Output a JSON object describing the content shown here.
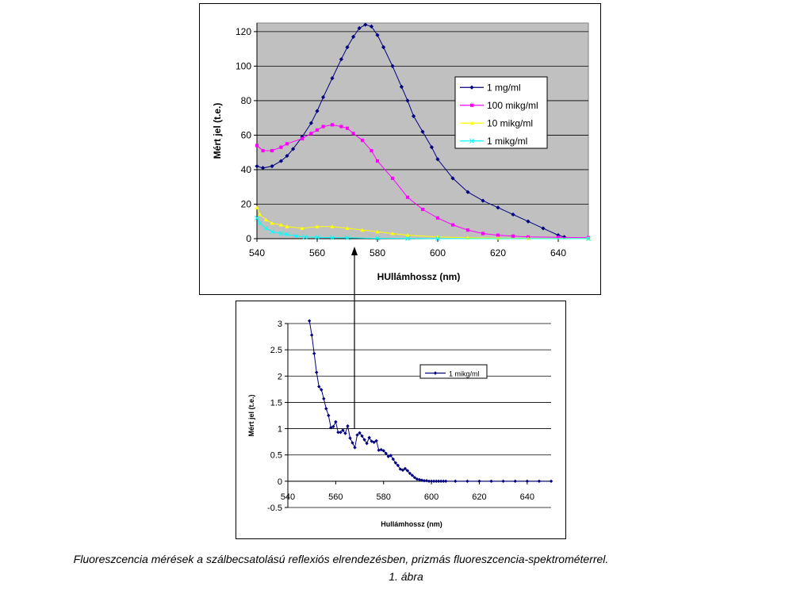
{
  "chart_data": [
    {
      "type": "line",
      "title": "",
      "xlabel": "HUllámhossz (nm)",
      "ylabel": "Mért jel (t.e.)",
      "xlim": [
        540,
        650
      ],
      "ylim": [
        0,
        125
      ],
      "xticks": [
        "540",
        "560",
        "580",
        "600",
        "620",
        "640"
      ],
      "yticks": [
        "0",
        "20",
        "40",
        "60",
        "80",
        "100",
        "120"
      ],
      "grid": true,
      "plot_background": "#c0c0c0",
      "legend_position": "top-right",
      "series": [
        {
          "name": "1 mg/ml",
          "color": "#000080",
          "marker": "diamond",
          "x": [
            540,
            542,
            545,
            548,
            550,
            552,
            555,
            558,
            560,
            562,
            565,
            568,
            570,
            572,
            574,
            576,
            578,
            580,
            582,
            585,
            588,
            590,
            592,
            595,
            598,
            600,
            605,
            610,
            615,
            620,
            625,
            630,
            635,
            640,
            642
          ],
          "y": [
            42,
            41,
            42,
            45,
            48,
            52,
            59,
            67,
            74,
            82,
            93,
            104,
            111,
            117,
            122,
            124,
            123,
            118,
            111,
            100,
            88,
            80,
            71,
            62,
            53,
            46,
            35,
            27,
            22,
            18,
            14,
            10,
            6,
            2,
            1
          ]
        },
        {
          "name": "100 mikg/ml",
          "color": "#ff00ff",
          "marker": "square",
          "x": [
            540,
            542,
            545,
            548,
            550,
            555,
            558,
            560,
            562,
            565,
            568,
            570,
            572,
            575,
            578,
            580,
            585,
            590,
            595,
            600,
            605,
            610,
            615,
            620,
            625,
            630,
            640,
            650
          ],
          "y": [
            54,
            51,
            51,
            53,
            55,
            58,
            61,
            63,
            65,
            66,
            65,
            64,
            61,
            57,
            51,
            45,
            35,
            24,
            17,
            12,
            8,
            5,
            3,
            2,
            1.5,
            1,
            0.8,
            0.6
          ]
        },
        {
          "name": "10 mikg/ml",
          "color": "#ffff00",
          "marker": "triangle",
          "x": [
            540,
            541,
            543,
            545,
            548,
            550,
            555,
            560,
            565,
            570,
            575,
            580,
            585,
            590,
            600,
            610,
            620,
            630,
            650
          ],
          "y": [
            18,
            14,
            11,
            9,
            8,
            7,
            6,
            7,
            7,
            6,
            5,
            4,
            3,
            2,
            1,
            0.5,
            0.3,
            0.2,
            0.1
          ]
        },
        {
          "name": "1 mikg/ml",
          "color": "#00ffff",
          "marker": "x",
          "x": [
            540,
            541,
            543,
            545,
            548,
            550,
            553,
            556,
            560,
            565,
            570,
            580,
            590,
            600,
            650
          ],
          "y": [
            12,
            9,
            6,
            4,
            3,
            2.5,
            1.5,
            1,
            0.8,
            0.6,
            0.5,
            0.2,
            0.1,
            0,
            0
          ]
        }
      ]
    },
    {
      "type": "line",
      "title": "",
      "xlabel": "Hullámhossz (nm)",
      "ylabel": "Mért jel (t.e.)",
      "xlim": [
        540,
        650
      ],
      "ylim": [
        -0.5,
        3
      ],
      "xticks": [
        "540",
        "560",
        "580",
        "600",
        "620",
        "640"
      ],
      "yticks": [
        "-0.5",
        "0",
        "0.5",
        "1",
        "1.5",
        "2",
        "2.5",
        "3"
      ],
      "grid": true,
      "plot_background": "#ffffff",
      "legend_position": "top-right",
      "series": [
        {
          "name": "1 mikg/ml",
          "color": "#000080",
          "marker": "diamond",
          "x": [
            549,
            550,
            551,
            552,
            553,
            554,
            555,
            556,
            557,
            558,
            559,
            560,
            561,
            562,
            563,
            564,
            565,
            566,
            567,
            568,
            569,
            570,
            571,
            572,
            573,
            574,
            575,
            576,
            577,
            578,
            579,
            580,
            581,
            582,
            583,
            584,
            585,
            586,
            587,
            588,
            589,
            590,
            591,
            592,
            593,
            594,
            595,
            596,
            597,
            598,
            599,
            600,
            601,
            602,
            603,
            604,
            605,
            606,
            610,
            615,
            620,
            625,
            630,
            635,
            640,
            645,
            650
          ],
          "y": [
            3.05,
            2.78,
            2.43,
            2.07,
            1.8,
            1.74,
            1.57,
            1.38,
            1.25,
            1.02,
            1.04,
            1.13,
            0.93,
            0.93,
            0.97,
            0.91,
            1.05,
            0.82,
            0.73,
            0.64,
            0.88,
            0.92,
            0.86,
            0.79,
            0.72,
            0.83,
            0.76,
            0.74,
            0.77,
            0.59,
            0.6,
            0.58,
            0.53,
            0.47,
            0.49,
            0.42,
            0.35,
            0.3,
            0.23,
            0.21,
            0.24,
            0.2,
            0.15,
            0.11,
            0.07,
            0.04,
            0.03,
            0.02,
            0.01,
            0.01,
            0,
            0,
            0,
            0,
            0,
            0,
            0,
            0,
            0,
            0,
            0,
            0,
            0,
            0,
            0,
            0,
            0
          ]
        }
      ]
    }
  ],
  "caption": {
    "line1": "Fluoreszcencia mérések a szálbecsatolású reflexiós elrendezésben, prizmás fluoreszcencia-spektrométerrel.",
    "line2": "1. ábra"
  }
}
